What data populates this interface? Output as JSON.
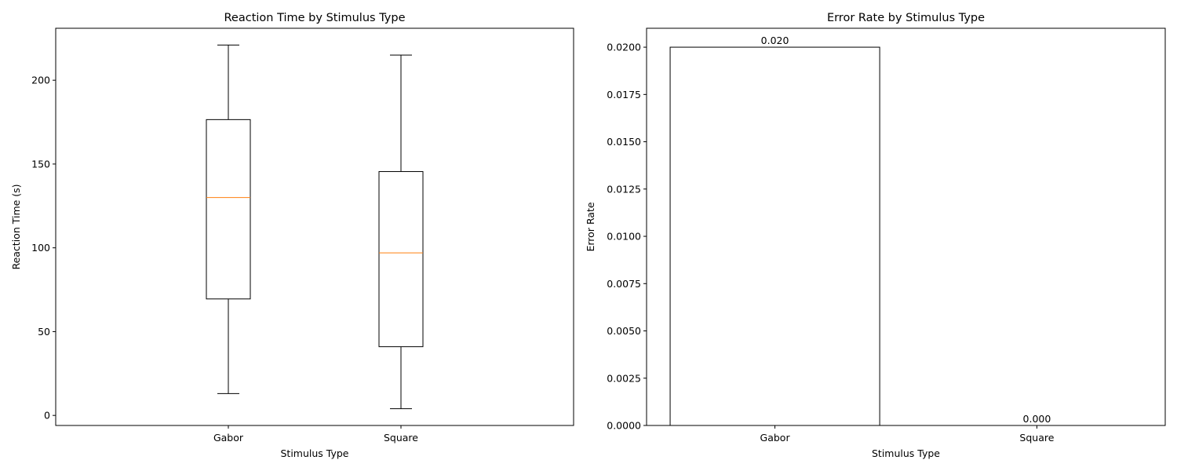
{
  "chart_data": [
    {
      "type": "box",
      "title": "Reaction Time by Stimulus Type",
      "xlabel": "Stimulus Type",
      "ylabel": "Reaction Time (s)",
      "categories": [
        "Gabor",
        "Square"
      ],
      "ylim": [
        -6,
        231
      ],
      "yticks": [
        0,
        50,
        100,
        150,
        200
      ],
      "ytick_labels": [
        "0",
        "50",
        "100",
        "150",
        "200"
      ],
      "grid": false,
      "boxes": [
        {
          "category": "Gabor",
          "whisker_low": 13,
          "q1": 69.5,
          "median": 130,
          "q3": 176.5,
          "whisker_high": 221
        },
        {
          "category": "Square",
          "whisker_low": 4,
          "q1": 41,
          "median": 97,
          "q3": 145.5,
          "whisker_high": 215
        }
      ],
      "colors": {
        "box": "#000000",
        "median": "#ff7f0e"
      }
    },
    {
      "type": "bar",
      "title": "Error Rate by Stimulus Type",
      "xlabel": "Stimulus Type",
      "ylabel": "Error Rate",
      "categories": [
        "Gabor",
        "Square"
      ],
      "values": [
        0.02,
        0.0
      ],
      "data_labels": [
        "0.020",
        "0.000"
      ],
      "ylim": [
        0,
        0.021
      ],
      "yticks": [
        0,
        0.0025,
        0.005,
        0.0075,
        0.01,
        0.0125,
        0.015,
        0.0175,
        0.02
      ],
      "ytick_labels": [
        "0.0000",
        "0.0025",
        "0.0050",
        "0.0075",
        "0.0100",
        "0.0125",
        "0.0150",
        "0.0175",
        "0.0200"
      ],
      "grid": false,
      "colors": {
        "bar_fill": "#ffffff",
        "bar_edge": "#000000"
      }
    }
  ]
}
